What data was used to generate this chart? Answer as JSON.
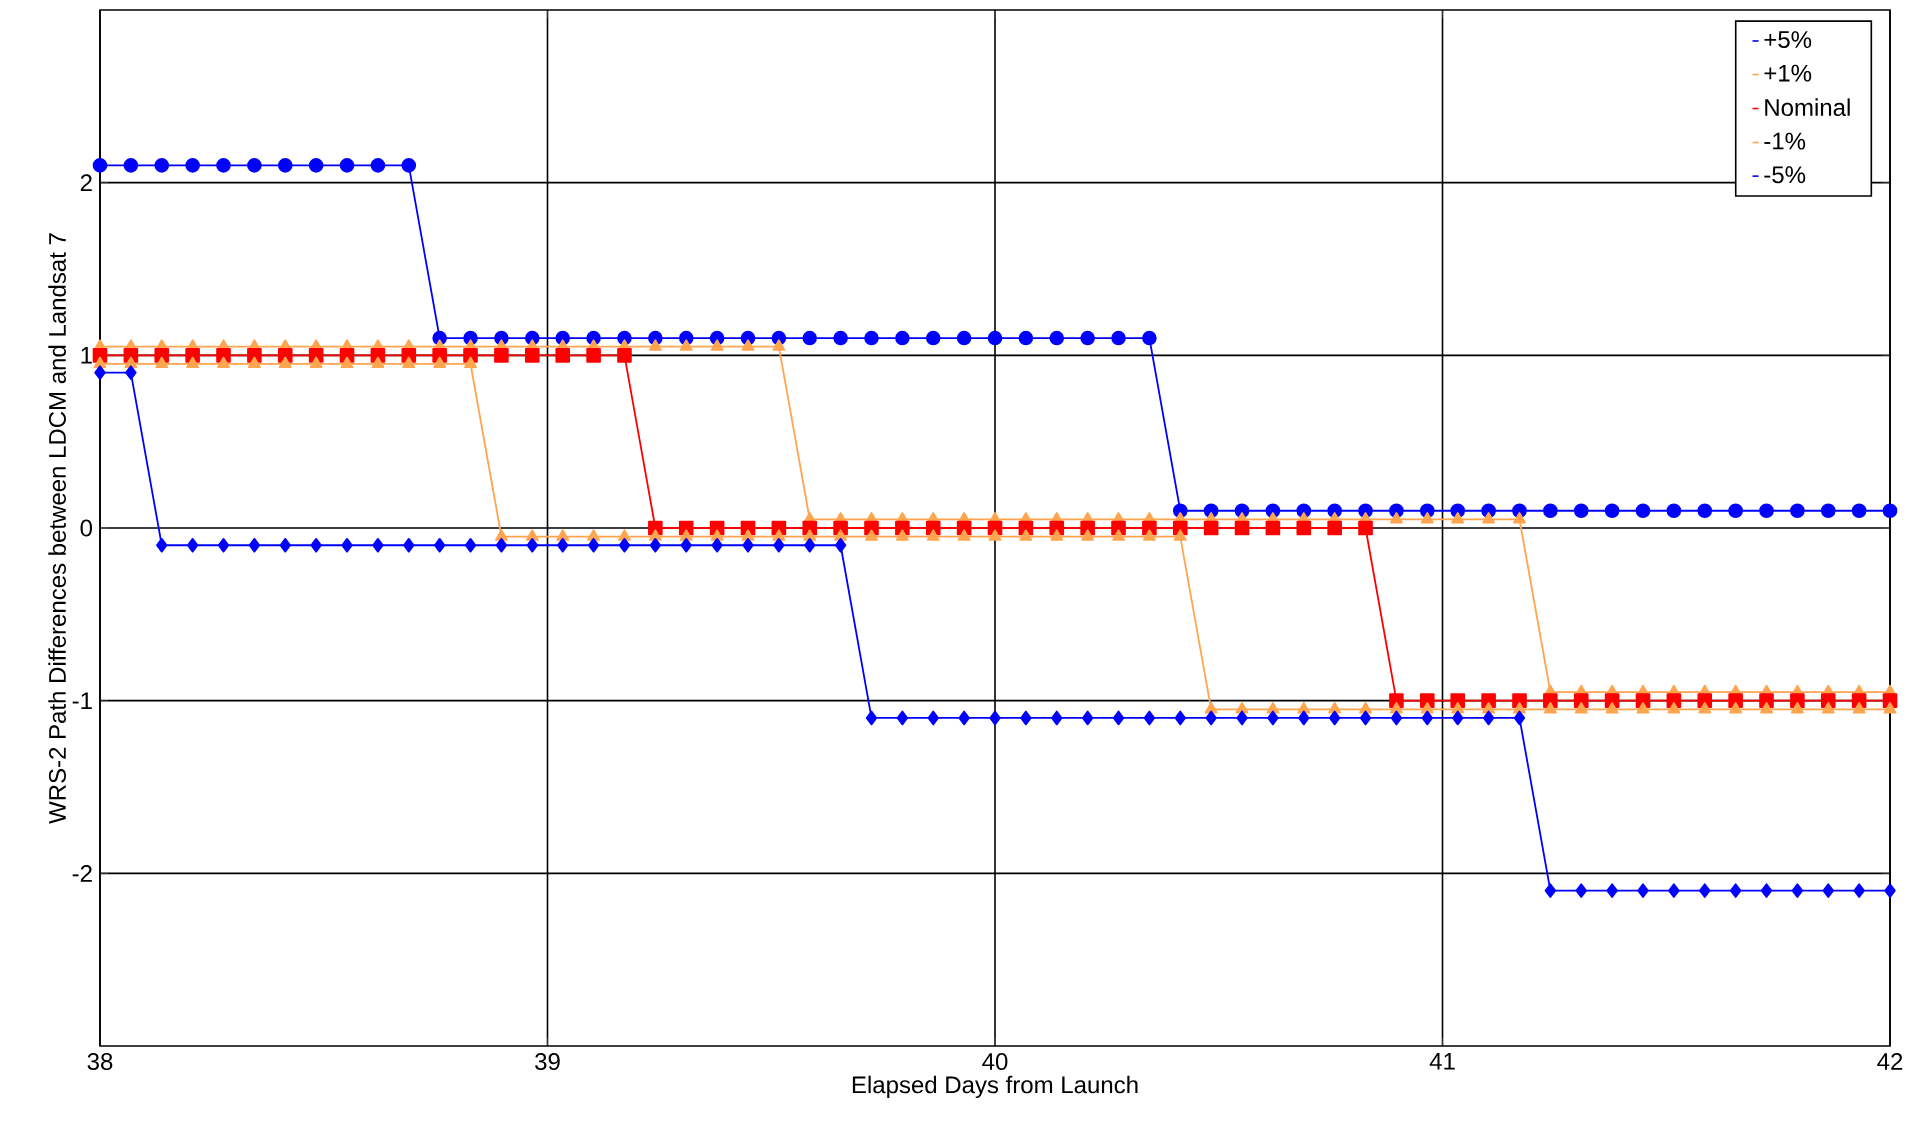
{
  "chart_data": {
    "type": "line",
    "xlabel": "Elapsed Days from Launch",
    "ylabel": "WRS-2 Path Differences between LDCM and Landsat 7",
    "xlim": [
      38,
      42
    ],
    "xticks": [
      38,
      39,
      40,
      41,
      42
    ],
    "ylim": [
      -3,
      3
    ],
    "yticks": [
      -2,
      -1,
      0,
      1,
      2
    ],
    "grid": true,
    "legend": "top right",
    "line_style": "solid",
    "x": [
      38.0,
      38.069,
      38.138,
      38.207,
      38.276,
      38.345,
      38.414,
      38.483,
      38.552,
      38.621,
      38.69,
      38.759,
      38.828,
      38.897,
      38.966,
      39.034,
      39.103,
      39.172,
      39.241,
      39.31,
      39.379,
      39.448,
      39.517,
      39.586,
      39.655,
      39.724,
      39.793,
      39.862,
      39.931,
      40.0,
      40.069,
      40.138,
      40.207,
      40.276,
      40.345,
      40.414,
      40.483,
      40.552,
      40.621,
      40.69,
      40.759,
      40.828,
      40.897,
      40.966,
      41.034,
      41.103,
      41.172,
      41.241,
      41.31,
      41.379,
      41.448,
      41.517,
      41.586,
      41.655,
      41.724,
      41.793,
      41.862,
      41.931,
      42.0
    ],
    "series": [
      {
        "name": "+5%",
        "color": "#0000ff",
        "marker": "circle",
        "values": [
          2.1,
          2.1,
          2.1,
          2.1,
          2.1,
          2.1,
          2.1,
          2.1,
          2.1,
          2.1,
          2.1,
          1.1,
          1.1,
          1.1,
          1.1,
          1.1,
          1.1,
          1.1,
          1.1,
          1.1,
          1.1,
          1.1,
          1.1,
          1.1,
          1.1,
          1.1,
          1.1,
          1.1,
          1.1,
          1.1,
          1.1,
          1.1,
          1.1,
          1.1,
          1.1,
          0.1,
          0.1,
          0.1,
          0.1,
          0.1,
          0.1,
          0.1,
          0.1,
          0.1,
          0.1,
          0.1,
          0.1,
          0.1,
          0.1,
          0.1,
          0.1,
          0.1,
          0.1,
          0.1,
          0.1,
          0.1,
          0.1,
          0.1,
          0.1
        ]
      },
      {
        "name": "+1%",
        "color": "#ffa54f",
        "marker": "triangle",
        "values": [
          1.05,
          1.05,
          1.05,
          1.05,
          1.05,
          1.05,
          1.05,
          1.05,
          1.05,
          1.05,
          1.05,
          1.05,
          1.05,
          1.05,
          1.05,
          1.05,
          1.05,
          1.05,
          1.05,
          1.05,
          1.05,
          1.05,
          1.05,
          0.05,
          0.05,
          0.05,
          0.05,
          0.05,
          0.05,
          0.05,
          0.05,
          0.05,
          0.05,
          0.05,
          0.05,
          0.05,
          0.05,
          0.05,
          0.05,
          0.05,
          0.05,
          0.05,
          0.05,
          0.05,
          0.05,
          0.05,
          0.05,
          -0.95,
          -0.95,
          -0.95,
          -0.95,
          -0.95,
          -0.95,
          -0.95,
          -0.95,
          -0.95,
          -0.95,
          -0.95,
          -0.95
        ]
      },
      {
        "name": "Nominal",
        "color": "#ff0000",
        "marker": "square",
        "values": [
          1,
          1,
          1,
          1,
          1,
          1,
          1,
          1,
          1,
          1,
          1,
          1,
          1,
          1,
          1,
          1,
          1,
          1,
          0,
          0,
          0,
          0,
          0,
          0,
          0,
          0,
          0,
          0,
          0,
          0,
          0,
          0,
          0,
          0,
          0,
          0,
          0,
          0,
          0,
          0,
          0,
          0,
          -1,
          -1,
          -1,
          -1,
          -1,
          -1,
          -1,
          -1,
          -1,
          -1,
          -1,
          -1,
          -1,
          -1,
          -1,
          -1,
          -1
        ]
      },
      {
        "name": "-1%",
        "color": "#ffa54f",
        "marker": "triangle",
        "values": [
          0.95,
          0.95,
          0.95,
          0.95,
          0.95,
          0.95,
          0.95,
          0.95,
          0.95,
          0.95,
          0.95,
          0.95,
          0.95,
          -0.05,
          -0.05,
          -0.05,
          -0.05,
          -0.05,
          -0.05,
          -0.05,
          -0.05,
          -0.05,
          -0.05,
          -0.05,
          -0.05,
          -0.05,
          -0.05,
          -0.05,
          -0.05,
          -0.05,
          -0.05,
          -0.05,
          -0.05,
          -0.05,
          -0.05,
          -0.05,
          -1.05,
          -1.05,
          -1.05,
          -1.05,
          -1.05,
          -1.05,
          -1.05,
          -1.05,
          -1.05,
          -1.05,
          -1.05,
          -1.05,
          -1.05,
          -1.05,
          -1.05,
          -1.05,
          -1.05,
          -1.05,
          -1.05,
          -1.05,
          -1.05,
          -1.05,
          -1.05
        ]
      },
      {
        "name": "-5%",
        "color": "#0000ff",
        "marker": "diamond",
        "values": [
          0.9,
          0.9,
          -0.1,
          -0.1,
          -0.1,
          -0.1,
          -0.1,
          -0.1,
          -0.1,
          -0.1,
          -0.1,
          -0.1,
          -0.1,
          -0.1,
          -0.1,
          -0.1,
          -0.1,
          -0.1,
          -0.1,
          -0.1,
          -0.1,
          -0.1,
          -0.1,
          -0.1,
          -0.1,
          -1.1,
          -1.1,
          -1.1,
          -1.1,
          -1.1,
          -1.1,
          -1.1,
          -1.1,
          -1.1,
          -1.1,
          -1.1,
          -1.1,
          -1.1,
          -1.1,
          -1.1,
          -1.1,
          -1.1,
          -1.1,
          -1.1,
          -1.1,
          -1.1,
          -1.1,
          -2.1,
          -2.1,
          -2.1,
          -2.1,
          -2.1,
          -2.1,
          -2.1,
          -2.1,
          -2.1,
          -2.1,
          -2.1,
          -2.1
        ]
      }
    ]
  }
}
